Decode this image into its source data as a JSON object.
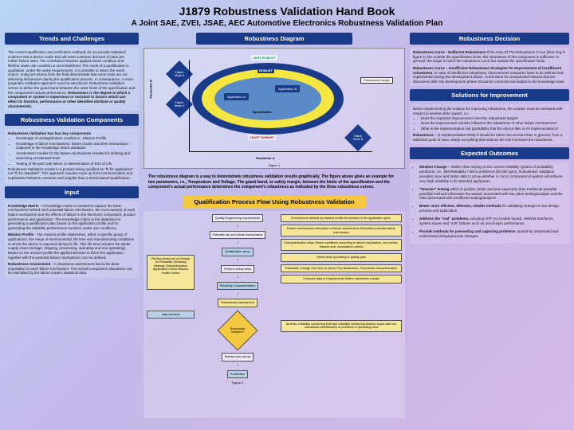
{
  "header": {
    "title": "J1879 Robustness Validation Hand Book",
    "subtitle": "A Joint SAE, ZVEI, JSAE, AEC Automotive Electronics Robustness Validation Plan"
  },
  "col1": {
    "trends_hdr": "Trends and Challenges",
    "trends_body": "The current qualification and verification methods do not provide statistical evidence that a device under test will meet customer demand of parts per million failure rates. The correlation between applied stress condition and lifetime under use condition is not established. The result of a qualification is qualitative, under the same requirements, it is possible to select the worst choice. Analyzed returns from the field demonstrate that some tests are not detecting deficiencies during the qualification process. In consequence, a more pragmatic validation approach must be introduced. Robustness validation serves to define the guard band between the outer limits of the specification and the component's actual performance.",
    "trends_em": "Robustness is the degree to which a component or system is impervious or resistant to factors which can effect its function, performance or other identified attribute or quality characteristic.",
    "components_hdr": "Robustness Validation Components",
    "components_lead": "Robustness Validation has four key components",
    "components_list": [
      "Knowledge of use/application conditions - Mission Profile",
      "Knowledge of failure mechanisms, failure modes and their interactions – Captured in the Knowledge Matrix database",
      "Acceleration models for the failure mechanisms needed for defining and assessing accelerated tests",
      "Testing of the part until failure or determination of End of Life"
    ],
    "components_tail": "Robustness Validation results in a product being qualified as \"fit for application\", not \"fit for standard\". This approach requires more up front communication and explanation between customer and supplier than a stress-based qualification.",
    "input_hdr": "Input",
    "km_lead": "Knowledge Matrix",
    "km_body": " - A knowledge matrix is needed to capture the basic mechanisms behind each potential failure mechanism, the root cause(s) of each failure mechanism and the effects of failure to the electronic component, product performance and application. The knowledge matrix is the database for generating a qualification plan based on the application profile and for generating the reliability performance numbers under use conditions.",
    "mp_lead": "Mission Profile",
    "mp_body": " - The mission profile determines, within a specific group of applications, the range of environmental, life time and manufacturing conditions to which the device is exposed during its life. This life time includes the whole supply chain (storage, shipping, processing, operating and non-operating). Based on the mission profile the applied stresses to fail in the application together with the potential failure mechanisms can be defined.",
    "ra_lead": "Robustness Assessment",
    "ra_body": " - A robustness assessment has to be done separately for each failure mechanism. The overall component robustness can be estimated by the failure mode's statistical data."
  },
  "col2": {
    "diagram_hdr": "Robustness Diagram",
    "very_robust": "VERY ROBUST",
    "robust": "ROBUST",
    "least_robust": "LEAST ROBUST",
    "app_a": "Application A",
    "app_b": "Application B",
    "spec": "Specification",
    "margin": "Robustness Margin",
    "param_a": "Parameter A",
    "param_b": "Parameter B",
    "fail_a": "Failure Mode A",
    "fail_a2": "Failure Mode A'",
    "fail_b": "Failure Mode B",
    "fig1": "Figure 1",
    "desc": "The robustness diagram is a way to demonstrate robustness validation results graphically. The figure above gives an example for two parameters, i.e., Temperature and Voltage. The guard band, or safety margin, between the limits of the specification and the component's actual performance determines the component's robustness as indicated by the three robustness curves.",
    "flow_hdr": "Qualification Process Flow Using Robustness Validation",
    "flow": {
      "left1": "Review stress set up Design for Reliability Stressing strategy Characterization Application review Mission Profile review",
      "left2": "Improvement",
      "c1": "Quality Engineering requirements",
      "c2": "Potential risk and failure mechanisms",
      "c3": "Qualification setup",
      "c4": "Perform stress tests",
      "c5": "Reliability Characterization",
      "c6": "Robustness Assessment",
      "c7": "Robustness Sufficient?",
      "c8": "Monitor plan set up",
      "c9": "Production",
      "r1": "Environment defined by mission profile\nAll stresses in the application spec.",
      "r2": "Failure mechanisms\nInteraction of failure mechanisms\nEstimation potential failure mechanism",
      "r3": "Characterization setup\nStress conditions according to failure mechanism, incl vehicle, Sample size, Acceptance criteria",
      "r4": "Stress tests according to quality plan",
      "r5": "Parameter change over time of stress\nPost destruction, Post stress characterization",
      "r6": "Compare data to requirements\nDefine robustness margin",
      "r7": "All tests, reliability monitoring\nExtrinsic reliability monitoring\nMonitor topics with low robustness\nIdentification of problems in preceding area",
      "fig2": "Figure 2"
    }
  },
  "col3": {
    "decision_hdr": "Robustness Decision",
    "dec1_lead": "Robustness Curve - Sufficient Robustness",
    "dec1_body": "\nIf the Area Of The Robustness Curve (blue ring in figure 1) lies outside the specification limits, the robustness of the component is sufficient. In general, the target is met if the robustness curve lies outside the specification limits.",
    "dec2_lead": "Robustness Curve – Insufficient Robustness\nStrategies for Improvement of insufficient robustness.",
    "dec2_body": "\nIn case of insufficient robustness, improvement measures have to be defined and implemented during the development phase. Corrections for Unexpected Failures that are discovered after the development phase should be corrected and added to the knowledge base.",
    "solutions_hdr": "Solutions for Improvement",
    "sol_lead": "Before implementing the solution for improving robustness, the solution must be reviewed with respect to several other aspect, i.e.,",
    "sol_list": [
      "Does the expected improvement meet the robustness target?",
      "Does the improvement solution influence the robustness of other failure mechanisms?",
      "What is the implementation risk (probability that the device fails in it's implementation)?"
    ],
    "sol_tail_lead": "Robustness",
    "sol_tail": " – (1-Implementation Risk) It should be taken into account that, in general, from a statistical point of view, nearly everything that reduces the risk increases the robustness.",
    "outcomes_hdr": "Expected Outcomes",
    "out_list": [
      {
        "lead": "Mindset Change –",
        "body": " Rather than relying on the current reliability system of probability prediction, i.e., 95%Reliability / 90%Confidence (50,000 ppm), Robustness Validation provides more and better data to prove whether or not a component of system will achieve very high reliability in its intended application."
      },
      {
        "lead": "\"Smarter\" testing",
        "body": " which is quicker, better and less expensive than traditional pass/fail pass/fail methods eliminates the wastes associated with low value testing/analysis and the risks associated with insufficient testing/analysis."
      },
      {
        "lead": "Better more efficient, effective, reliable methods",
        "body": " for validating changes to the design, process and application."
      },
      {
        "lead": "Address the \"real\" problems,",
        "body": " including NTF (no trouble found), HW/SW interfaces, system issues and \"soft\" failures such as out-of-spec performance."
      },
      {
        "lead": "Provide methods for preventing and capturing problems",
        "body": " caused by unintended and undisclosed design/process changes."
      }
    ]
  },
  "colors": {
    "navy": "#1a3a8a",
    "yellow": "#f5c842",
    "ring_yellow": "#f5e642",
    "ring_blue": "#5a8ac8"
  }
}
